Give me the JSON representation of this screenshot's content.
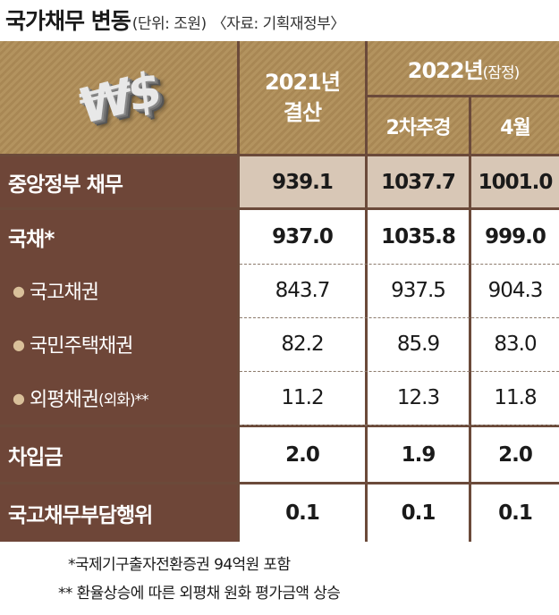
{
  "title": "국가채무 변동",
  "unit": "(단위: 조원)",
  "source": "〈자료: 기획재정부〉",
  "logo_text": "₩$",
  "icons": {
    "logo": "won-dollar-coin-icon"
  },
  "colors": {
    "label_bg": "#6e4638",
    "header_bg": "#b3935f",
    "highlight_row": "#d8c7b6",
    "table_border": "#6b4a3a"
  },
  "chart_data": {
    "type": "table",
    "header": {
      "col_2021_line1": "2021년",
      "col_2021_line2": "결산",
      "col_2022": "2022년",
      "col_2022_note": "(잠정)",
      "col_2022_a": "2차추경",
      "col_2022_b": "4월"
    },
    "columns": [
      "2021년 결산",
      "2022년(잠정) 2차추경",
      "2022년(잠정) 4월"
    ],
    "rows": [
      {
        "label": "중앙정부 채무",
        "note": "",
        "values": [
          "939.1",
          "1037.7",
          "1001.0"
        ]
      },
      {
        "label": "국채*",
        "note": "",
        "values": [
          "937.0",
          "1035.8",
          "999.0"
        ]
      },
      {
        "label": "국고채권",
        "note": "",
        "values": [
          "843.7",
          "937.5",
          "904.3"
        ]
      },
      {
        "label": "국민주택채권",
        "note": "",
        "values": [
          "82.2",
          "85.9",
          "83.0"
        ]
      },
      {
        "label": "외평채권",
        "note": "(외화)**",
        "values": [
          "11.2",
          "12.3",
          "11.8"
        ]
      },
      {
        "label": "차입금",
        "note": "",
        "values": [
          "2.0",
          "1.9",
          "2.0"
        ]
      },
      {
        "label": "국고채무부담행위",
        "note": "",
        "values": [
          "0.1",
          "0.1",
          "0.1"
        ]
      }
    ]
  },
  "footnotes": [
    "*국제기구출자전환증권 94억원 포함",
    "** 환율상승에 따른 외평채 원화 평가금액 상승"
  ]
}
